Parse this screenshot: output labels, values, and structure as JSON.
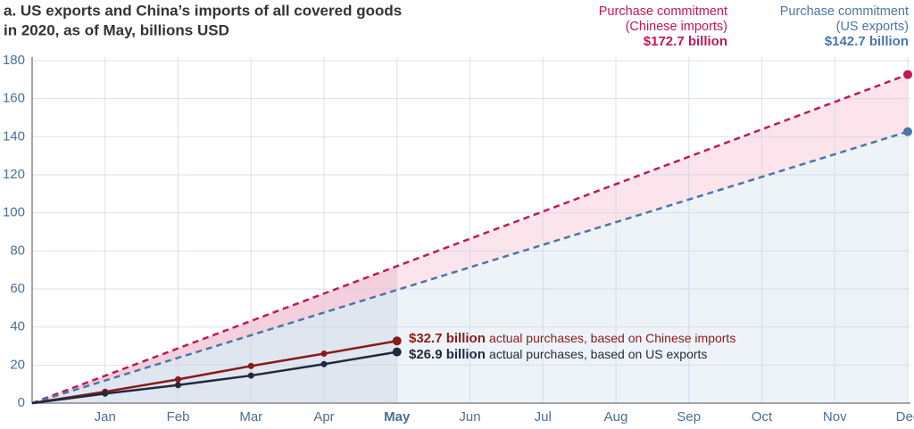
{
  "chart_data": {
    "type": "line",
    "title_lines": [
      "a. US exports and China’s imports of all covered goods",
      "in 2020, as of May, billions USD"
    ],
    "categories": [
      null,
      "Jan",
      "Feb",
      "Mar",
      "Apr",
      "May",
      "Jun",
      "Jul",
      "Aug",
      "Sep",
      "Oct",
      "Nov",
      "Dec"
    ],
    "highlight_index": 5,
    "ylim": [
      0,
      180
    ],
    "yticks": [
      0,
      20,
      40,
      60,
      80,
      100,
      120,
      140,
      160,
      180
    ],
    "grid": true,
    "series": [
      {
        "color": "#c0185a",
        "dash": true,
        "label_lines": [
          "Purchase commitment",
          "(Chinese imports)"
        ],
        "label_value": "$172.7 billion",
        "values": [
          0,
          14.4,
          28.8,
          43.2,
          57.6,
          72.0,
          86.4,
          100.7,
          115.1,
          129.5,
          143.9,
          158.3,
          172.7
        ]
      },
      {
        "color": "#4a77a8",
        "dash": true,
        "label_lines": [
          "Purchase commitment",
          "(US exports)"
        ],
        "label_value": "$142.7 billion",
        "values": [
          0,
          11.9,
          23.8,
          35.7,
          47.6,
          59.5,
          71.4,
          83.2,
          95.1,
          107.0,
          118.9,
          130.8,
          142.7
        ]
      },
      {
        "color": "#8b1a1a",
        "dash": false,
        "label_value": "$32.7 billion",
        "label_text": "actual purchases, based on Chinese imports",
        "values": [
          0,
          6,
          12.5,
          19.5,
          26,
          32.7,
          null,
          null,
          null,
          null,
          null,
          null,
          null
        ]
      },
      {
        "color": "#1f2a3c",
        "dash": false,
        "label_value": "$26.9 billion",
        "label_text": "actual purchases, based on US exports",
        "values": [
          0,
          5,
          9.5,
          14.5,
          20.5,
          26.9,
          null,
          null,
          null,
          null,
          null,
          null,
          null
        ]
      }
    ]
  }
}
